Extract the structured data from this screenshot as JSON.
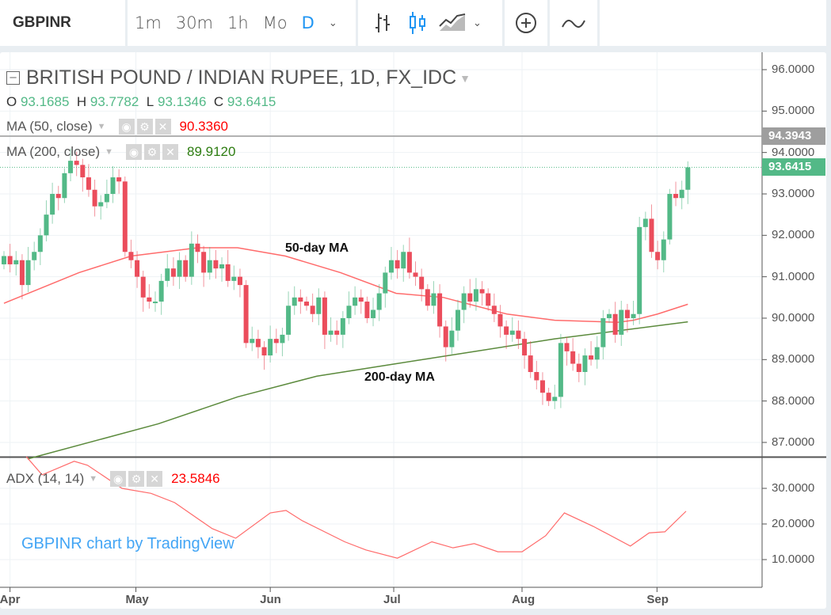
{
  "toolbar": {
    "symbol": "GBPINR",
    "intervals": [
      "1m",
      "30m",
      "1h",
      "Mo",
      "D"
    ],
    "active_interval": "D"
  },
  "legend": {
    "title": "BRITISH POUND / INDIAN RUPEE, 1D, FX_IDC",
    "ohlc": {
      "o_label": "O",
      "o": "93.1685",
      "h_label": "H",
      "h": "93.7782",
      "l_label": "L",
      "l": "93.1346",
      "c_label": "C",
      "c": "93.6415"
    },
    "ma50": {
      "label": "MA (50, close)",
      "value": "90.3360",
      "color": "#ff0000"
    },
    "ma200": {
      "label": "MA (200, close)",
      "value": "89.9120",
      "color": "#2e7d12"
    },
    "adx": {
      "label": "ADX (14, 14)",
      "value": "23.5846",
      "color": "#ff0000"
    }
  },
  "watermark": "GBPINR chart by TradingView",
  "chart_data": {
    "type": "candlestick",
    "title": "BRITISH POUND / INDIAN RUPEE, 1D, FX_IDC",
    "price_ticks": [
      "96.0000",
      "95.0000",
      "94.0000",
      "93.0000",
      "92.0000",
      "91.0000",
      "90.0000",
      "89.0000",
      "88.0000",
      "87.0000"
    ],
    "price_range": [
      86.6,
      96.4
    ],
    "adx_ticks": [
      "30.0000",
      "20.0000",
      "10.0000"
    ],
    "x_ticks": [
      {
        "label": "Apr",
        "index": 1
      },
      {
        "label": "May",
        "index": 21.8
      },
      {
        "label": "Jun",
        "index": 44
      },
      {
        "label": "Jul",
        "index": 64.4
      },
      {
        "label": "Aug",
        "index": 85.6
      },
      {
        "label": "Sep",
        "index": 107.9
      }
    ],
    "last_price": "93.6415",
    "line_price": "94.3943",
    "closes": [
      91.5,
      91.3,
      91.4,
      90.8,
      91.4,
      91.6,
      92.0,
      92.5,
      93.0,
      92.9,
      93.5,
      93.8,
      93.7,
      93.4,
      93.1,
      92.7,
      92.8,
      93.0,
      93.4,
      93.3,
      91.6,
      91.4,
      91.0,
      90.5,
      90.4,
      90.4,
      90.9,
      91.2,
      91.0,
      91.4,
      91.0,
      91.8,
      91.6,
      91.1,
      91.4,
      91.2,
      91.3,
      90.9,
      91.0,
      90.8,
      89.4,
      89.5,
      89.3,
      89.1,
      89.5,
      89.4,
      89.6,
      90.3,
      90.5,
      90.4,
      90.3,
      90.1,
      90.5,
      89.6,
      89.7,
      89.6,
      90.0,
      90.3,
      90.5,
      90.4,
      90.0,
      90.2,
      90.6,
      91.1,
      91.4,
      91.2,
      91.6,
      91.1,
      91.0,
      90.7,
      90.3,
      90.6,
      89.8,
      89.3,
      89.7,
      90.2,
      90.6,
      90.4,
      90.7,
      90.6,
      90.3,
      90.1,
      89.8,
      89.6,
      89.7,
      89.5,
      89.1,
      88.7,
      88.5,
      88.2,
      88.0,
      88.1,
      89.4,
      89.2,
      88.9,
      88.7,
      89.1,
      89.0,
      89.3,
      90.0,
      90.1,
      89.6,
      90.2,
      90.0,
      90.1,
      92.2,
      92.4,
      91.6,
      91.4,
      91.9,
      93.0,
      92.9,
      93.1,
      93.6415
    ],
    "ma50": [
      [
        0,
        90.36
      ],
      [
        12.4,
        91.1
      ],
      [
        21,
        91.5
      ],
      [
        32,
        91.7
      ],
      [
        38.6,
        91.7
      ],
      [
        46.5,
        91.5
      ],
      [
        55.6,
        91.1
      ],
      [
        64.8,
        90.6
      ],
      [
        72.6,
        90.5
      ],
      [
        83.1,
        90.1
      ],
      [
        91,
        89.95
      ],
      [
        101.4,
        89.9
      ],
      [
        104,
        89.95
      ],
      [
        108,
        90.1
      ],
      [
        113,
        90.336
      ]
    ],
    "ma200": [
      [
        3.9,
        86.6
      ],
      [
        25.5,
        87.45
      ],
      [
        38.6,
        88.1
      ],
      [
        51.7,
        88.6
      ],
      [
        64.8,
        88.9
      ],
      [
        77.9,
        89.2
      ],
      [
        91,
        89.5
      ],
      [
        113,
        89.912
      ]
    ],
    "adx": [
      [
        3.7,
        38.9
      ],
      [
        6.3,
        33.8
      ],
      [
        11.6,
        37.6
      ],
      [
        13.8,
        36.5
      ],
      [
        19.5,
        30
      ],
      [
        24.3,
        28.6
      ],
      [
        28.2,
        26
      ],
      [
        34.4,
        18.7
      ],
      [
        38.3,
        16
      ],
      [
        44,
        23.1
      ],
      [
        46.6,
        23.8
      ],
      [
        49.2,
        21
      ],
      [
        56.3,
        15
      ],
      [
        59.8,
        12.7
      ],
      [
        65,
        10.4
      ],
      [
        70.7,
        15
      ],
      [
        74.2,
        13.3
      ],
      [
        77.7,
        14.5
      ],
      [
        81.6,
        12.2
      ],
      [
        85.6,
        12.2
      ],
      [
        89.5,
        16.7
      ],
      [
        92.6,
        23.1
      ],
      [
        97.4,
        19.3
      ],
      [
        103.5,
        13.8
      ],
      [
        106.6,
        17.5
      ],
      [
        109.2,
        17.8
      ],
      [
        112.7,
        23.5846
      ]
    ],
    "annotations": [
      "50-day MA",
      "200-day MA"
    ],
    "colors": {
      "up": "#53b987",
      "down": "#eb4d5c",
      "ma50": "#ff6b6b",
      "ma200": "#5b8a3c",
      "adx": "#ff6b6b"
    }
  }
}
